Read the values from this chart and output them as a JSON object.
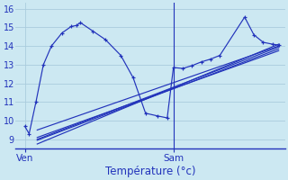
{
  "title": "Température (°c)",
  "bg_color": "#cce8f2",
  "grid_color": "#aaccdd",
  "line_color": "#2233bb",
  "ylim": [
    8.5,
    16.3
  ],
  "xlim": [
    5.0,
    48.5
  ],
  "yticks": [
    9,
    10,
    11,
    12,
    13,
    14,
    15,
    16
  ],
  "xtick_pos": [
    6.5,
    30.5
  ],
  "xtick_labels": [
    "Ven",
    "Sam"
  ],
  "vline_x": 30.5,
  "main_x": [
    6.5,
    7.2,
    8.3,
    9.5,
    10.8,
    12.5,
    14.0,
    14.8,
    15.5,
    17.5,
    19.5,
    22.0,
    24.0,
    26.0,
    28.0,
    29.5,
    30.5,
    32.0,
    33.5,
    35.0,
    36.5,
    38.0,
    42.0,
    43.5,
    45.0,
    46.5,
    47.5
  ],
  "main_y": [
    9.7,
    9.3,
    11.0,
    13.0,
    14.0,
    14.7,
    15.05,
    15.1,
    15.25,
    14.8,
    14.35,
    13.5,
    12.3,
    10.4,
    10.25,
    10.15,
    12.85,
    12.8,
    12.95,
    13.15,
    13.3,
    13.5,
    15.55,
    14.6,
    14.2,
    14.1,
    14.05
  ],
  "lin_lines": [
    {
      "x0": 8.5,
      "y0": 9.5,
      "x1": 47.5,
      "y1": 14.0
    },
    {
      "x0": 8.5,
      "y0": 9.1,
      "x1": 47.5,
      "y1": 13.75
    },
    {
      "x0": 8.5,
      "y0": 8.95,
      "x1": 47.5,
      "y1": 13.85
    },
    {
      "x0": 8.5,
      "y0": 8.75,
      "x1": 47.5,
      "y1": 14.1
    },
    {
      "x0": 8.5,
      "y0": 9.0,
      "x1": 47.5,
      "y1": 13.95
    }
  ]
}
